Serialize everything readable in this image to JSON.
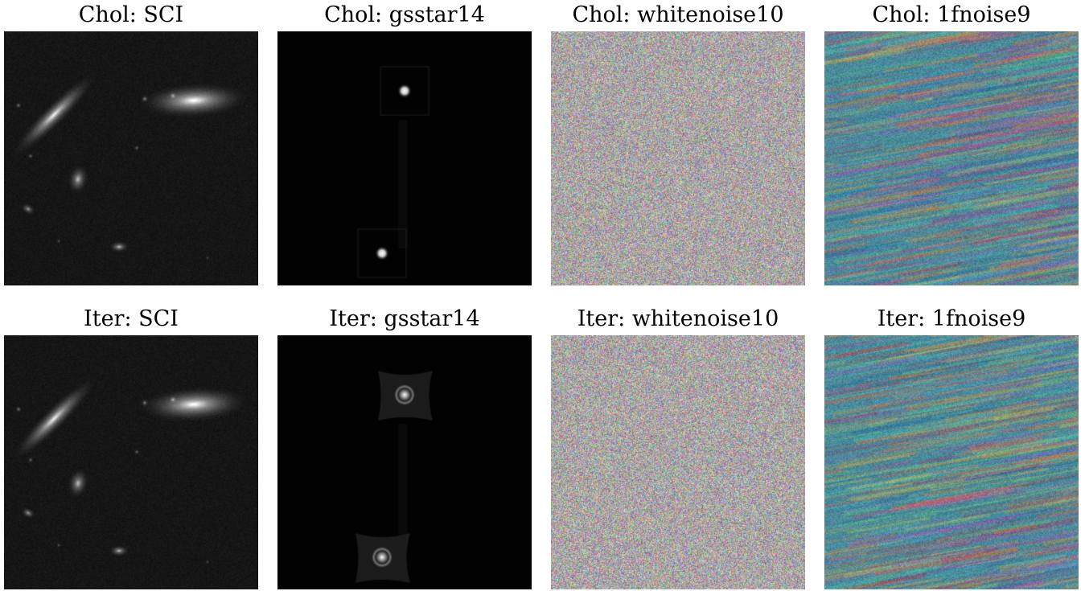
{
  "panels": [
    {
      "title": "Chol: SCI",
      "kind": "sci"
    },
    {
      "title": "Chol: gsstar14",
      "kind": "star_chol"
    },
    {
      "title": "Chol: whitenoise10",
      "kind": "white"
    },
    {
      "title": "Chol: 1fnoise9",
      "kind": "onef"
    },
    {
      "title": "Iter: SCI",
      "kind": "sci"
    },
    {
      "title": "Iter: gsstar14",
      "kind": "star_iter"
    },
    {
      "title": "Iter: whitenoise10",
      "kind": "white"
    },
    {
      "title": "Iter: 1fnoise9",
      "kind": "onef"
    }
  ]
}
